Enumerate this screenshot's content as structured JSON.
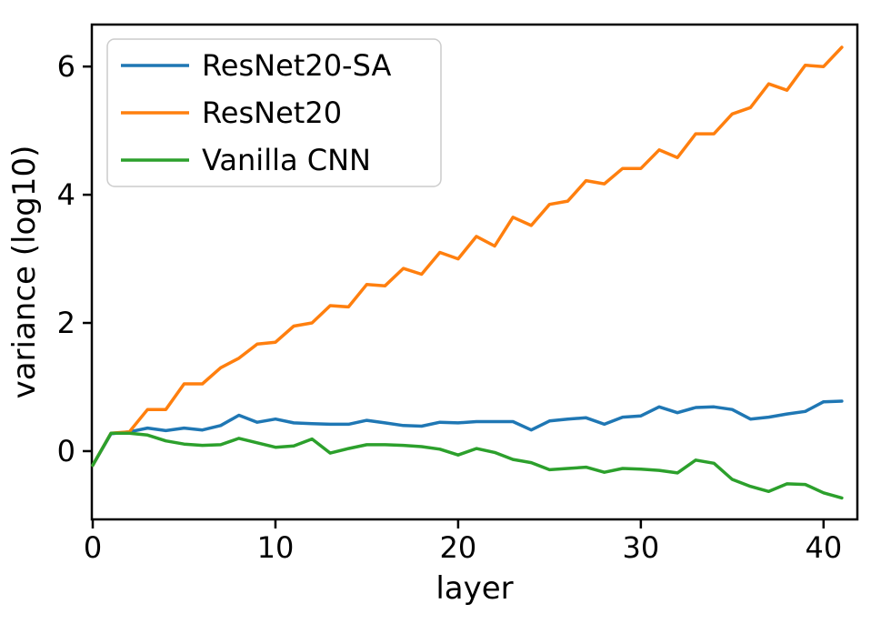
{
  "figure": {
    "background": "#ffffff",
    "spine_color": "#000000"
  },
  "chart_data": {
    "type": "line",
    "title": "",
    "xlabel": "layer",
    "ylabel": "variance (log10)",
    "grid": false,
    "legend_position": "upper left",
    "xlim": [
      -0.05,
      41.85
    ],
    "ylim": [
      -1.065,
      6.655
    ],
    "x_ticks": [
      0,
      10,
      20,
      30,
      40
    ],
    "y_ticks": [
      0,
      2,
      4,
      6
    ],
    "x": [
      0,
      1,
      2,
      3,
      4,
      5,
      6,
      7,
      8,
      9,
      10,
      11,
      12,
      13,
      14,
      15,
      16,
      17,
      18,
      19,
      20,
      21,
      22,
      23,
      24,
      25,
      26,
      27,
      28,
      29,
      30,
      31,
      32,
      33,
      34,
      35,
      36,
      37,
      38,
      39,
      40,
      41
    ],
    "series": [
      {
        "name": "ResNet20-SA",
        "color": "#1f77b4",
        "values": [
          -0.22,
          0.27,
          0.3,
          0.36,
          0.32,
          0.36,
          0.33,
          0.4,
          0.56,
          0.45,
          0.5,
          0.44,
          0.43,
          0.42,
          0.42,
          0.48,
          0.44,
          0.4,
          0.39,
          0.45,
          0.44,
          0.46,
          0.46,
          0.46,
          0.33,
          0.47,
          0.5,
          0.52,
          0.42,
          0.53,
          0.55,
          0.69,
          0.6,
          0.68,
          0.69,
          0.65,
          0.5,
          0.53,
          0.58,
          0.62,
          0.77,
          0.78
        ]
      },
      {
        "name": "ResNet20",
        "color": "#ff7f0e",
        "values": [
          -0.22,
          0.28,
          0.3,
          0.65,
          0.65,
          1.05,
          1.05,
          1.3,
          1.45,
          1.67,
          1.7,
          1.95,
          2.0,
          2.27,
          2.25,
          2.6,
          2.58,
          2.85,
          2.76,
          3.1,
          3.0,
          3.35,
          3.2,
          3.65,
          3.52,
          3.85,
          3.9,
          4.22,
          4.17,
          4.41,
          4.41,
          4.7,
          4.58,
          4.95,
          4.95,
          5.26,
          5.36,
          5.73,
          5.63,
          6.02,
          6.0,
          6.3
        ]
      },
      {
        "name": "Vanilla CNN",
        "color": "#2ca02c",
        "values": [
          -0.22,
          0.28,
          0.28,
          0.25,
          0.16,
          0.11,
          0.09,
          0.1,
          0.2,
          0.13,
          0.06,
          0.08,
          0.19,
          -0.03,
          0.04,
          0.1,
          0.1,
          0.09,
          0.07,
          0.03,
          -0.06,
          0.04,
          -0.02,
          -0.13,
          -0.18,
          -0.29,
          -0.27,
          -0.25,
          -0.33,
          -0.27,
          -0.28,
          -0.3,
          -0.34,
          -0.14,
          -0.19,
          -0.44,
          -0.55,
          -0.63,
          -0.51,
          -0.52,
          -0.65,
          -0.73
        ]
      }
    ]
  }
}
